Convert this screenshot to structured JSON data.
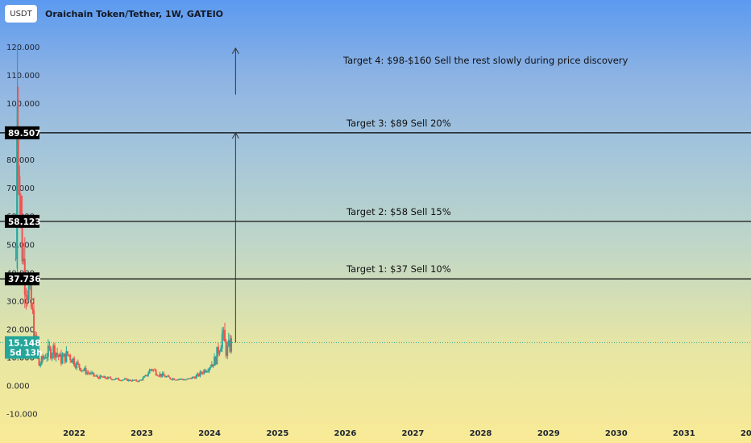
{
  "header": {
    "currency_button": "USDT",
    "title": "Oraichain Token/Tether, 1W, GATEIO"
  },
  "chart_data": {
    "type": "candlestick",
    "ylim": [
      -13,
      128
    ],
    "y_ticks": [
      "-10.000",
      "0.000",
      "10.000",
      "20.000",
      "30.000",
      "40.000",
      "50.000",
      "60.000",
      "70.000",
      "80.000",
      "90.000",
      "100.000",
      "110.000",
      "120.000"
    ],
    "x_ticks": [
      "2022",
      "2023",
      "2024",
      "2025",
      "2026",
      "2027",
      "2028",
      "2029",
      "2030",
      "2031",
      "2032"
    ],
    "xlim": [
      "2021-01-01",
      "2032-12-01"
    ],
    "price_path": [
      {
        "date": "2021-02-20",
        "value": 45
      },
      {
        "date": "2021-03-01",
        "value": 120
      },
      {
        "date": "2021-03-08",
        "value": 80
      },
      {
        "date": "2021-03-20",
        "value": 56
      },
      {
        "date": "2021-04-05",
        "value": 42
      },
      {
        "date": "2021-04-25",
        "value": 35
      },
      {
        "date": "2021-05-20",
        "value": 25
      },
      {
        "date": "2021-06-10",
        "value": 12
      },
      {
        "date": "2021-06-25",
        "value": 7
      },
      {
        "date": "2021-08-01",
        "value": 11
      },
      {
        "date": "2021-09-15",
        "value": 13
      },
      {
        "date": "2021-10-20",
        "value": 9
      },
      {
        "date": "2021-12-01",
        "value": 11
      },
      {
        "date": "2022-01-20",
        "value": 7
      },
      {
        "date": "2022-03-01",
        "value": 5
      },
      {
        "date": "2022-05-01",
        "value": 3
      },
      {
        "date": "2022-07-01",
        "value": 2.5
      },
      {
        "date": "2022-10-01",
        "value": 2
      },
      {
        "date": "2022-12-15",
        "value": 1.5
      },
      {
        "date": "2023-01-20",
        "value": 3
      },
      {
        "date": "2023-02-20",
        "value": 6
      },
      {
        "date": "2023-04-01",
        "value": 4
      },
      {
        "date": "2023-06-01",
        "value": 2.5
      },
      {
        "date": "2023-09-01",
        "value": 2
      },
      {
        "date": "2023-11-01",
        "value": 3.5
      },
      {
        "date": "2023-12-15",
        "value": 6
      },
      {
        "date": "2024-02-01",
        "value": 9
      },
      {
        "date": "2024-03-10",
        "value": 18
      },
      {
        "date": "2024-04-01",
        "value": 12
      },
      {
        "date": "2024-05-01",
        "value": 15.148
      }
    ],
    "current_price": {
      "value": 15.148,
      "label": "15.148",
      "countdown": "5d 13h"
    },
    "levels": [
      {
        "value": 89.507,
        "label": "89.507",
        "text": "Target 3: $89 Sell 20%"
      },
      {
        "value": 58.123,
        "label": "58.123",
        "text": "Target 2: $58 Sell 15%"
      },
      {
        "value": 37.736,
        "label": "37.736",
        "text": "Target 1: $37 Sell 10%"
      }
    ],
    "projection": {
      "date": "2024-05-20",
      "from": 15.148,
      "to": 89.507
    },
    "target4": {
      "text": "Target 4: $98-$160 Sell the rest slowly during price discovery",
      "arrow_from": 103,
      "arrow_to": 119.5,
      "date": "2024-05-20"
    },
    "colors": {
      "up": "#26a69a",
      "down": "#ef5350",
      "current_badge": "#26a69a",
      "level_line": "#000000"
    }
  }
}
